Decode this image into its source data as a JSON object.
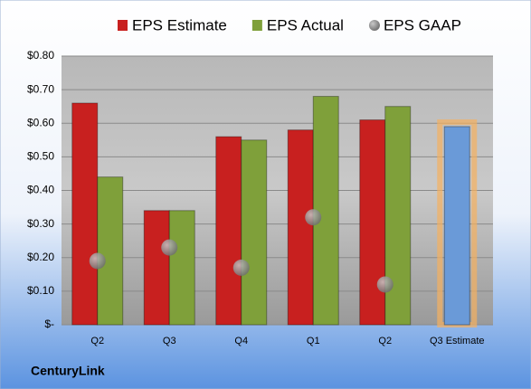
{
  "chart_data": {
    "type": "bar",
    "categories": [
      "Q2",
      "Q3",
      "Q4",
      "Q1",
      "Q2",
      "Q3 Estimate"
    ],
    "series": [
      {
        "name": "EPS Estimate",
        "color": "#c8201f",
        "values": [
          0.66,
          0.34,
          0.56,
          0.58,
          0.61,
          0.59
        ],
        "colors": [
          "#c8201f",
          "#c8201f",
          "#c8201f",
          "#c8201f",
          "#c8201f",
          "#6a9ad8"
        ]
      },
      {
        "name": "EPS Actual",
        "color": "#7fa03a",
        "values": [
          0.44,
          0.34,
          0.55,
          0.68,
          0.65,
          null
        ]
      },
      {
        "name": "EPS GAAP",
        "color": "#9a9a9a",
        "marker": "circle",
        "values": [
          0.19,
          0.23,
          0.17,
          0.32,
          0.12,
          null
        ]
      }
    ],
    "ylim": [
      0,
      0.8
    ],
    "yticks": [
      {
        "value": 0,
        "label": "$-"
      },
      {
        "value": 0.1,
        "label": "$0.10"
      },
      {
        "value": 0.2,
        "label": "$0.20"
      },
      {
        "value": 0.3,
        "label": "$0.30"
      },
      {
        "value": 0.4,
        "label": "$0.40"
      },
      {
        "value": 0.5,
        "label": "$0.50"
      },
      {
        "value": 0.6,
        "label": "$0.60"
      },
      {
        "value": 0.7,
        "label": "$0.70"
      },
      {
        "value": 0.8,
        "label": "$0.80"
      }
    ],
    "grid": true,
    "legend": "top",
    "footer": "CenturyLink"
  }
}
